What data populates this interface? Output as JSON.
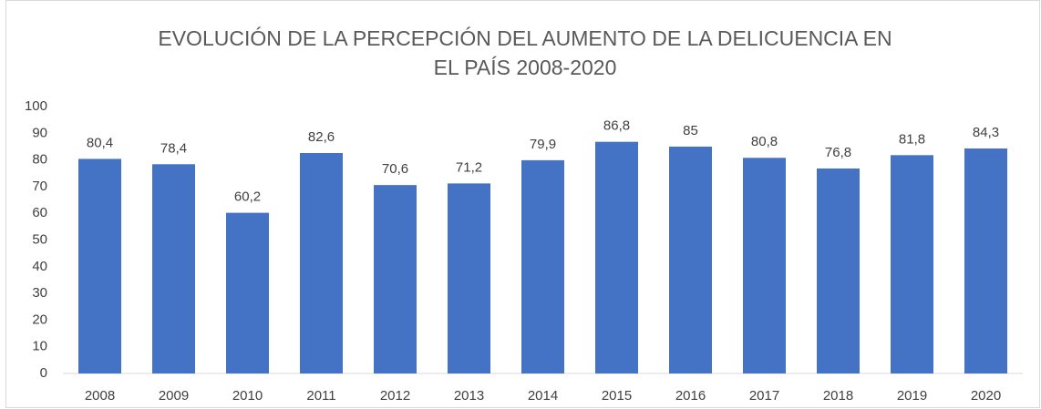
{
  "chart_data": {
    "type": "bar",
    "title": [
      "EVOLUCIÓN DE LA PERCEPCIÓN DEL AUMENTO DE LA DELICUENCIA EN",
      "EL PAÍS 2008-2020"
    ],
    "categories": [
      "2008",
      "2009",
      "2010",
      "2011",
      "2012",
      "2013",
      "2014",
      "2015",
      "2016",
      "2017",
      "2018",
      "2019",
      "2020"
    ],
    "values": [
      80.4,
      78.4,
      60.2,
      82.6,
      70.6,
      71.2,
      79.9,
      86.8,
      85,
      80.8,
      76.8,
      81.8,
      84.3
    ],
    "value_labels": [
      "80,4",
      "78,4",
      "60,2",
      "82,6",
      "70,6",
      "71,2",
      "79,9",
      "86,8",
      "85",
      "80,8",
      "76,8",
      "81,8",
      "84,3"
    ],
    "color": "#4472c4",
    "ylim": [
      0,
      100
    ],
    "yticks": [
      0,
      10,
      20,
      30,
      40,
      50,
      60,
      70,
      80,
      90,
      100
    ],
    "grid": false
  }
}
